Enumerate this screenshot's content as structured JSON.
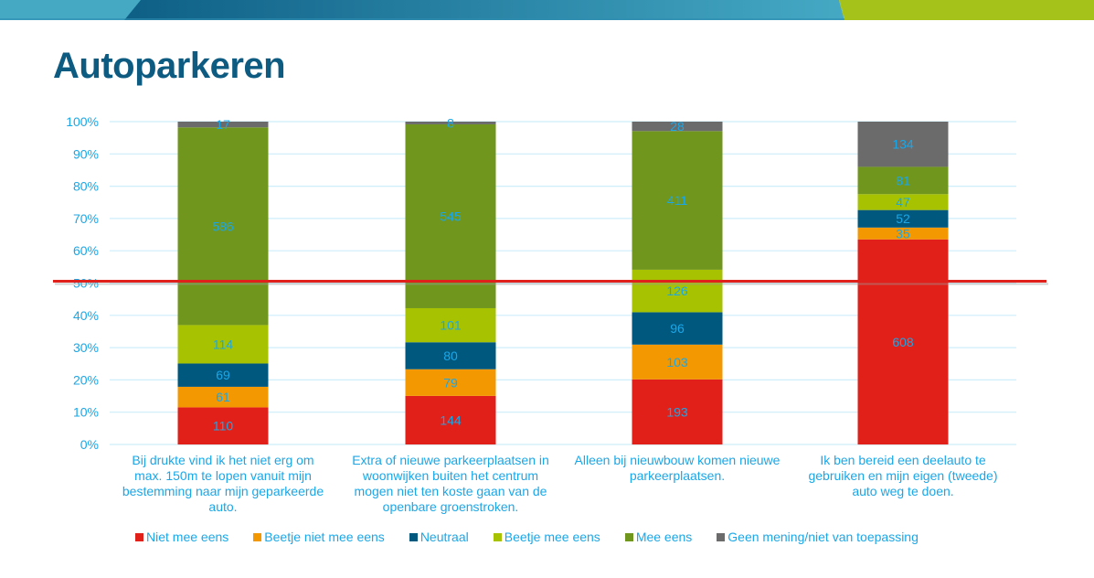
{
  "slide": {
    "title": "Autoparkeren",
    "banner_colors": {
      "light": "#45a9c4",
      "dark": "#0e5f86",
      "mid": "#3a9fbf",
      "lime": "#a5c21a"
    }
  },
  "reference_line": {
    "value_percent": 50,
    "color": "#e0201b"
  },
  "chart_data": {
    "type": "bar",
    "stacked": "percent",
    "title": "Autoparkeren",
    "xlabel": "",
    "ylabel": "",
    "ylim": [
      0,
      100
    ],
    "yticks": [
      "0%",
      "10%",
      "20%",
      "30%",
      "40%",
      "50%",
      "60%",
      "70%",
      "80%",
      "90%",
      "100%"
    ],
    "grid": true,
    "legend_position": "bottom",
    "categories": [
      "Bij drukte vind ik het niet erg om max. 150m te lopen vanuit mijn bestemming naar mijn geparkeerde auto.",
      "Extra of nieuwe parkeerplaatsen in woonwijken buiten het centrum mogen niet ten koste gaan van de openbare groenstroken.",
      "Alleen bij nieuwbouw komen nieuwe parkeerplaatsen.",
      "Ik ben bereid een deelauto te gebruiken en mijn eigen (tweede) auto weg te doen."
    ],
    "category_lines": [
      [
        "Bij drukte vind ik het niet erg om",
        "max. 150m te lopen vanuit mijn",
        "bestemming naar mijn geparkeerde",
        "auto."
      ],
      [
        "Extra of nieuwe parkeerplaatsen in",
        "woonwijken buiten het centrum",
        "mogen niet ten koste gaan van de",
        "openbare groenstroken."
      ],
      [
        "Alleen bij nieuwbouw komen nieuwe",
        "parkeerplaatsen."
      ],
      [
        "Ik ben bereid een deelauto te",
        "gebruiken en mijn eigen (tweede)",
        "auto weg te doen."
      ]
    ],
    "series": [
      {
        "name": "Niet mee eens",
        "color": "#e2201a",
        "values": [
          110,
          144,
          193,
          608
        ]
      },
      {
        "name": "Beetje niet mee eens",
        "color": "#f39800",
        "values": [
          61,
          79,
          103,
          35
        ]
      },
      {
        "name": "Neutraal",
        "color": "#00587f",
        "values": [
          69,
          80,
          96,
          52
        ]
      },
      {
        "name": "Beetje mee eens",
        "color": "#a6c200",
        "values": [
          114,
          101,
          126,
          47
        ]
      },
      {
        "name": "Mee eens",
        "color": "#70961e",
        "values": [
          586,
          545,
          411,
          81
        ]
      },
      {
        "name": "Geen mening/niet van toepassing",
        "color": "#6b6b6b",
        "values": [
          17,
          8,
          28,
          134
        ]
      }
    ]
  }
}
